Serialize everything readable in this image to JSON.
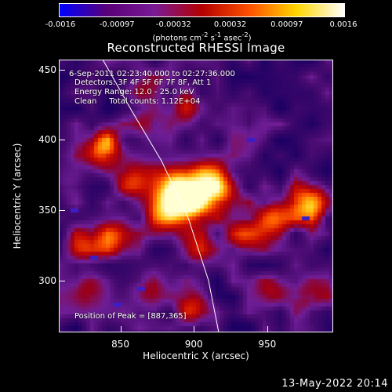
{
  "chart_data": {
    "type": "heatmap",
    "title": "Reconstructed RHESSI Image",
    "xlabel": "Heliocentric X (arcsec)",
    "ylabel": "Heliocentric Y (arcsec)",
    "xlim": [
      808,
      995
    ],
    "ylim": [
      263,
      457
    ],
    "x_ticks": [
      850,
      900,
      950
    ],
    "y_ticks": [
      300,
      350,
      400,
      450
    ],
    "colorbar": {
      "ticks": [
        "-0.0016",
        "-0.00097",
        "-0.00032",
        "0.00032",
        "0.00097",
        "0.0016"
      ],
      "range": [
        -0.0016,
        0.0016
      ],
      "units_label": "(photons cm",
      "units_exp1": "-2",
      "units_mid": " s",
      "units_exp2": "-1",
      "units_end": " asec",
      "units_exp3": "-2",
      "units_close": ")",
      "colormap": [
        "#0000ff",
        "#5a0078",
        "#7a1a96",
        "#b40000",
        "#ff5000",
        "#ffd700",
        "#ffffff"
      ]
    },
    "annotations": {
      "time": "6-Sep-2011 02:23:40.000 to 02:27:36.000",
      "detectors": "Detectors: 3F 4F 5F 6F 7F 8F, Att 1",
      "energy": "Energy Range: 12.0 - 25.0 keV",
      "algorithm": "Clean     Total counts: 1.12E+04",
      "peak": "Position of Peak = [887,365]"
    },
    "peak": {
      "x": 887,
      "y": 365
    },
    "limb_curve": [
      [
        838,
        457
      ],
      [
        858,
        420
      ],
      [
        878,
        385
      ],
      [
        896,
        345
      ],
      [
        910,
        300
      ],
      [
        917,
        263
      ]
    ],
    "sources": [
      {
        "x": 888,
        "y": 365,
        "intensity": 1.0
      },
      {
        "x": 900,
        "y": 355,
        "intensity": 0.8
      },
      {
        "x": 880,
        "y": 348,
        "intensity": 0.6
      },
      {
        "x": 910,
        "y": 372,
        "intensity": 0.65
      },
      {
        "x": 838,
        "y": 393,
        "intensity": 0.85
      },
      {
        "x": 858,
        "y": 372,
        "intensity": 0.55
      },
      {
        "x": 980,
        "y": 355,
        "intensity": 0.85
      },
      {
        "x": 955,
        "y": 345,
        "intensity": 0.7
      },
      {
        "x": 935,
        "y": 332,
        "intensity": 0.55
      },
      {
        "x": 922,
        "y": 360,
        "intensity": 0.5
      },
      {
        "x": 900,
        "y": 322,
        "intensity": 0.45
      },
      {
        "x": 845,
        "y": 330,
        "intensity": 0.5
      },
      {
        "x": 825,
        "y": 325,
        "intensity": 0.45
      },
      {
        "x": 828,
        "y": 292,
        "intensity": 0.35
      },
      {
        "x": 868,
        "y": 295,
        "intensity": 0.35
      },
      {
        "x": 900,
        "y": 282,
        "intensity": 0.55
      },
      {
        "x": 955,
        "y": 292,
        "intensity": 0.4
      },
      {
        "x": 978,
        "y": 288,
        "intensity": 0.45
      },
      {
        "x": 870,
        "y": 412,
        "intensity": 0.4
      },
      {
        "x": 865,
        "y": 440,
        "intensity": 0.25
      },
      {
        "x": 895,
        "y": 425,
        "intensity": 0.4
      },
      {
        "x": 938,
        "y": 402,
        "intensity": 0.25
      },
      {
        "x": 815,
        "y": 368,
        "intensity": 0.3
      }
    ]
  },
  "timestamp": "13-May-2022 20:14"
}
